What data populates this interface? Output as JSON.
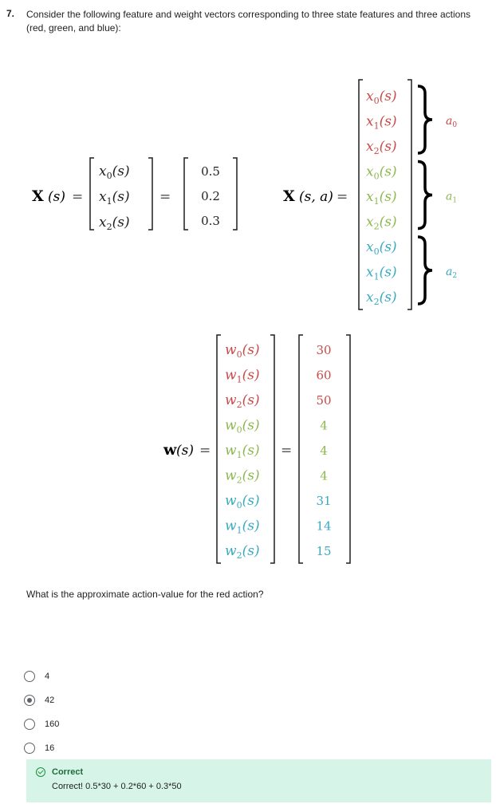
{
  "question": {
    "number": "7.",
    "text": "Consider the following feature and weight vectors corresponding to three state features and three actions (red, green, and blue):",
    "prompt": "What is the approximate action-value for the red action?"
  },
  "math": {
    "colors": {
      "red": "#c94a4a",
      "green": "#8db850",
      "blue": "#3aa9c2",
      "black": "#1f1f1f"
    },
    "xs": {
      "label": "X",
      "arg": "(s)",
      "equals": "=",
      "entries": [
        "x0(s)",
        "x1(s)",
        "x2(s)"
      ],
      "values": [
        "0.5",
        "0.2",
        "0.3"
      ]
    },
    "xsa": {
      "label": "X",
      "arg": "(s, a)",
      "equals": "=",
      "entries": [
        "x0(s)",
        "x1(s)",
        "x2(s)",
        "x0(s)",
        "x1(s)",
        "x2(s)",
        "x0(s)",
        "x1(s)",
        "x2(s)"
      ],
      "groups": [
        "a0",
        "a1",
        "a2"
      ]
    },
    "w": {
      "label": "w",
      "arg": "(s)",
      "equals": "=",
      "entries": [
        "w0(s)",
        "w1(s)",
        "w2(s)",
        "w0(s)",
        "w1(s)",
        "w2(s)",
        "w0(s)",
        "w1(s)",
        "w2(s)"
      ],
      "values": [
        "30",
        "60",
        "50",
        "4",
        "4",
        "4",
        "31",
        "14",
        "15"
      ]
    }
  },
  "options": [
    {
      "label": "4",
      "selected": false
    },
    {
      "label": "42",
      "selected": true
    },
    {
      "label": "160",
      "selected": false
    },
    {
      "label": "16",
      "selected": false
    }
  ],
  "feedback": {
    "title": "Correct",
    "text": "Correct! 0.5*30 + 0.2*60 + 0.3*50",
    "icon": "check-circle-icon"
  }
}
